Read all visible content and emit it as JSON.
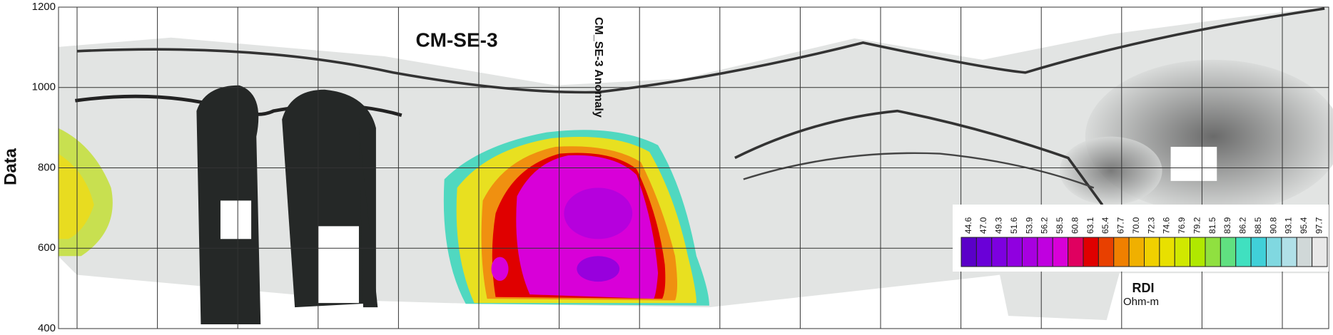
{
  "chart_data": {
    "type": "section",
    "title": "CM-SE-3",
    "annotation": "CM_SE-3 Anomaly",
    "y_label": "Data",
    "ylim": [
      400,
      1200
    ],
    "yticks": [
      400,
      600,
      800,
      1000,
      1200
    ],
    "grid": true,
    "colorbar": {
      "title": "RDI",
      "unit": "Ohm-m",
      "ticks": [
        44.6,
        {
          "value": 47,
          "label": "47.0"
        },
        49.3,
        51.6,
        53.9,
        56.2,
        58.5,
        60.8,
        63.1,
        65.4,
        67.7,
        {
          "value": 70,
          "label": "70.0"
        },
        72.3,
        74.6,
        76.9,
        79.2,
        81.5,
        83.9,
        86.2,
        88.5,
        90.8,
        93.1,
        95.4,
        97.7
      ],
      "colors": [
        "#5a00c8",
        "#6a00d8",
        "#7d00e0",
        "#9000e0",
        "#a800e0",
        "#c000e0",
        "#d800d8",
        "#e00060",
        "#e00000",
        "#e84000",
        "#f08000",
        "#f0b000",
        "#f0d000",
        "#e8e000",
        "#d0e800",
        "#b0e800",
        "#90e040",
        "#60e080",
        "#40e0c0",
        "#40d0d8",
        "#80d8e0",
        "#b0e0e8",
        "#d0d8d8",
        "#e8e8e8"
      ]
    }
  }
}
